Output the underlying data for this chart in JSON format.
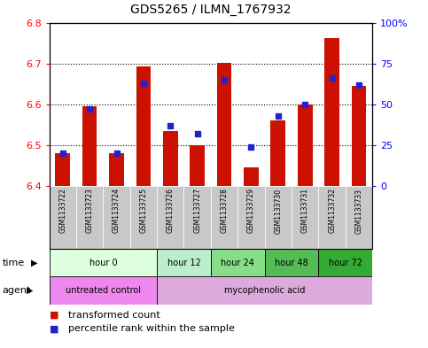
{
  "title": "GDS5265 / ILMN_1767932",
  "samples": [
    "GSM1133722",
    "GSM1133723",
    "GSM1133724",
    "GSM1133725",
    "GSM1133726",
    "GSM1133727",
    "GSM1133728",
    "GSM1133729",
    "GSM1133730",
    "GSM1133731",
    "GSM1133732",
    "GSM1133733"
  ],
  "transformed_count": [
    6.48,
    6.595,
    6.48,
    6.693,
    6.535,
    6.5,
    6.702,
    6.445,
    6.56,
    6.6,
    6.762,
    6.645
  ],
  "percentile_rank": [
    20,
    47,
    20,
    63,
    37,
    32,
    65,
    24,
    43,
    50,
    66,
    62
  ],
  "ymin": 6.4,
  "ymax": 6.8,
  "yticks": [
    6.4,
    6.5,
    6.6,
    6.7,
    6.8
  ],
  "right_yticks": [
    0,
    25,
    50,
    75,
    100
  ],
  "bar_color": "#cc1100",
  "dot_color": "#2222cc",
  "bar_bottom": 6.4,
  "time_groups": [
    {
      "label": "hour 0",
      "start": 0,
      "end": 4
    },
    {
      "label": "hour 12",
      "start": 4,
      "end": 6
    },
    {
      "label": "hour 24",
      "start": 6,
      "end": 8
    },
    {
      "label": "hour 48",
      "start": 8,
      "end": 10
    },
    {
      "label": "hour 72",
      "start": 10,
      "end": 12
    }
  ],
  "time_colors": [
    "#ddffdd",
    "#bbeecc",
    "#88dd88",
    "#55bb55",
    "#33aa33"
  ],
  "agent_groups": [
    {
      "label": "untreated control",
      "start": 0,
      "end": 4
    },
    {
      "label": "mycophenolic acid",
      "start": 4,
      "end": 12
    }
  ],
  "agent_colors": [
    "#ee88ee",
    "#ddaadd"
  ],
  "bg_color": "#ffffff"
}
